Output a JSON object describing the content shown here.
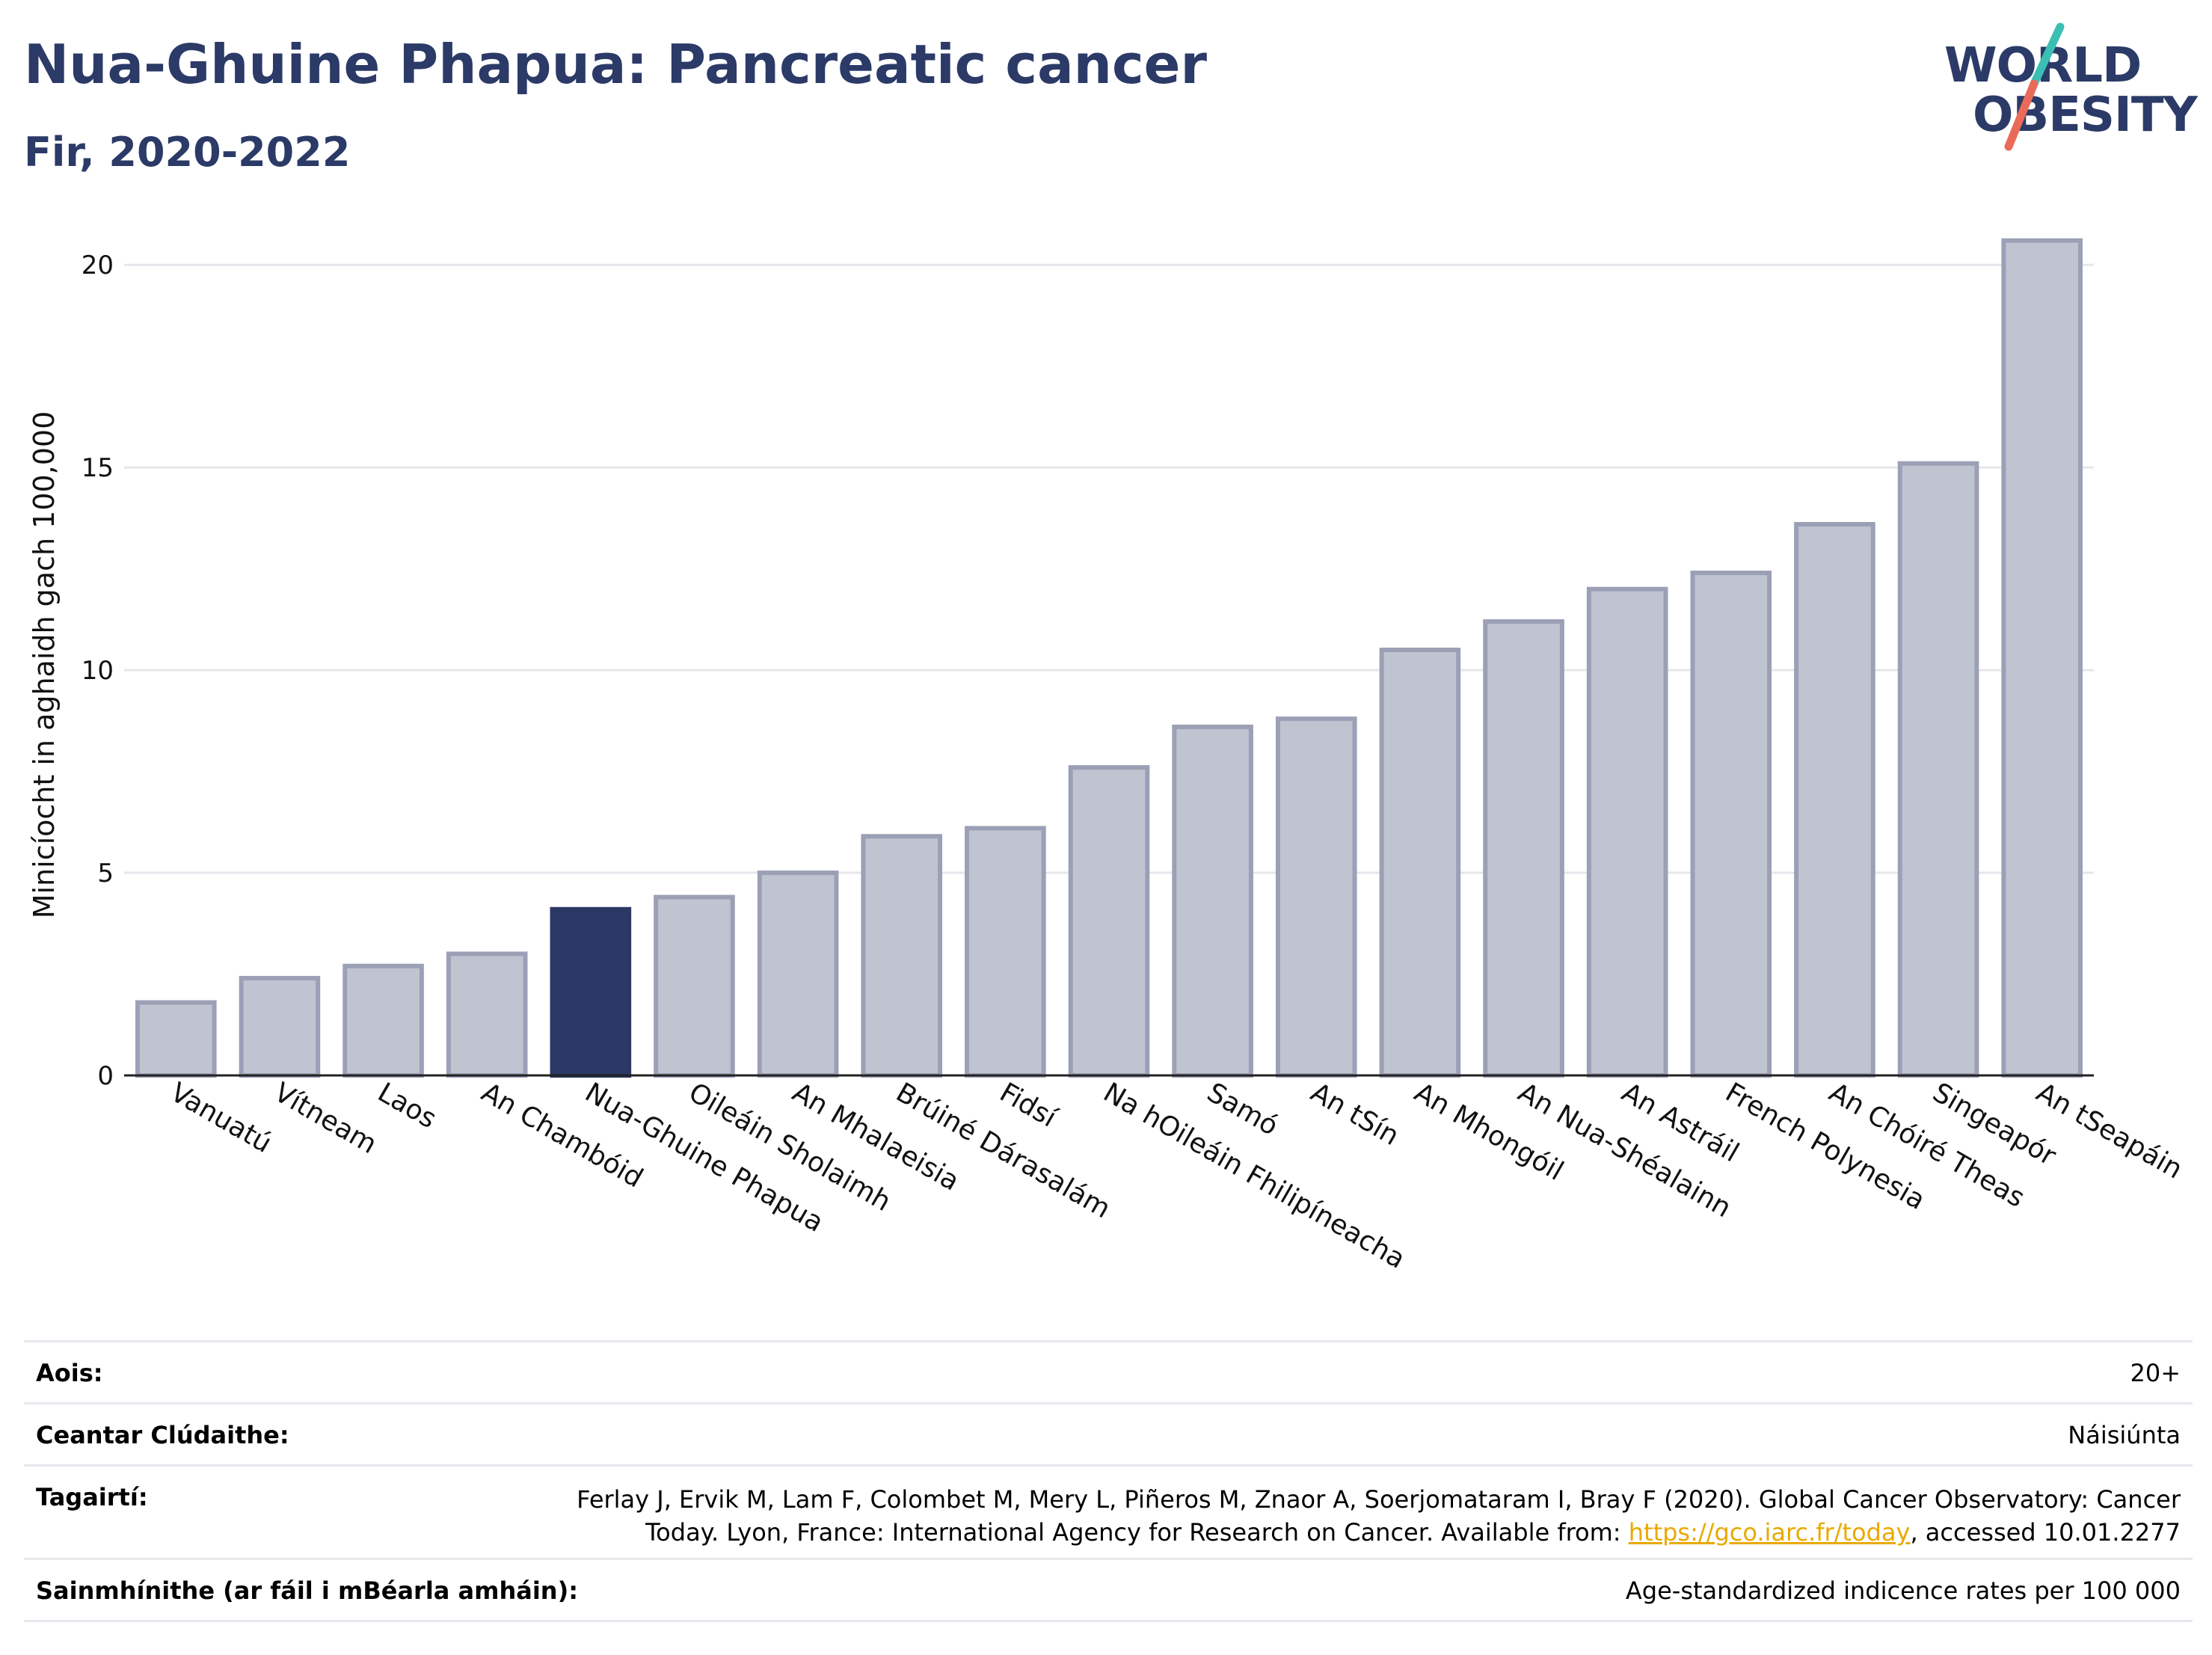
{
  "header": {
    "title": "Nua-Ghuine Phapua: Pancreatic cancer",
    "subtitle": "Fir, 2020-2022"
  },
  "logo": {
    "line1": "WORLD",
    "line2": "OBESITY"
  },
  "colors": {
    "highlight": "#2b3765",
    "bar": "#c0c4d1",
    "bar_border": "#9ba0b6",
    "title": "#2b3a67",
    "link": "#e9a900"
  },
  "chart_data": {
    "type": "bar",
    "ylabel": "Minicíocht in aghaidh gach 100,000",
    "ylim": [
      0,
      21
    ],
    "yticks": [
      0,
      5,
      10,
      15,
      20
    ],
    "grid": true,
    "highlight": "Nua-Ghuine Phapua",
    "categories": [
      "Vanuatú",
      "Vítneam",
      "Laos",
      "An Chambóid",
      "Nua-Ghuine Phapua",
      "Oileáin Sholaimh",
      "An Mhalaeisia",
      "Brúiné Dárasalám",
      "Fidsí",
      "Na hOileáin Fhilipíneacha",
      "Samó",
      "An tSín",
      "An Mhongóil",
      "An Nua-Shéalainn",
      "An Astráil",
      "French Polynesia",
      "An Chóiré Theas",
      "Singeapór",
      "An tSeapáin"
    ],
    "values": [
      1.8,
      2.4,
      2.7,
      3.0,
      4.1,
      4.4,
      5.0,
      5.9,
      6.1,
      7.6,
      8.6,
      8.8,
      10.5,
      11.2,
      12.0,
      12.4,
      13.6,
      15.1,
      20.6
    ]
  },
  "meta": {
    "age_label": "Aois:",
    "age_value": "20+",
    "area_label": "Ceantar Clúdaithe:",
    "area_value": "Náisiúnta",
    "ref_label": "Tagairtí:",
    "ref_text": "Ferlay J, Ervik M, Lam F, Colombet M, Mery L, Piñeros M, Znaor A, Soerjomataram I, Bray F (2020). Global Cancer Observatory: Cancer Today. Lyon, France: International Agency for Research on Cancer. Available from: ",
    "ref_link": "https://gco.iarc.fr/today",
    "ref_suffix": ", accessed 10.01.2277",
    "def_label": "Sainmhínithe (ar fáil i mBéarla amháin):",
    "def_value": "Age-standardized indicence rates per 100 000"
  }
}
